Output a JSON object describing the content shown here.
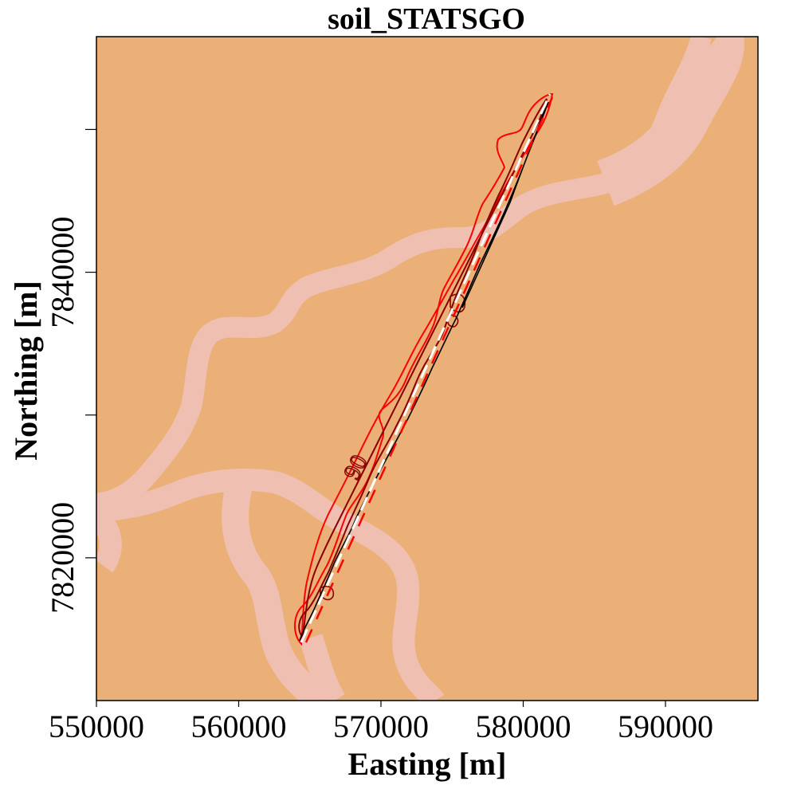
{
  "title": "soil_STATSGO",
  "x_axis": {
    "label": "Easting [m]",
    "ticks": [
      {
        "value": 550000,
        "label": "550000"
      },
      {
        "value": 560000,
        "label": "560000"
      },
      {
        "value": 570000,
        "label": "570000"
      },
      {
        "value": 580000,
        "label": "580000"
      },
      {
        "value": 590000,
        "label": "590000"
      }
    ],
    "range": [
      550000,
      596500
    ]
  },
  "y_axis": {
    "label": "Northing [m]",
    "ticks": [
      {
        "value": 7820000,
        "label": "7820000",
        "show_label": true
      },
      {
        "value": 7830000,
        "label": "7830000",
        "show_label": false
      },
      {
        "value": 7840000,
        "label": "7840000",
        "show_label": true
      },
      {
        "value": 7850000,
        "label": "7850000",
        "show_label": false
      }
    ],
    "range": [
      7810000,
      7856500
    ]
  },
  "contour_label": "90",
  "colors": {
    "background_soil": "#ebb077",
    "river_soil": "#efc0b2",
    "contour_outer": "#ff0000",
    "contour_inner": "#8b0000",
    "contour_core": "#000000",
    "centerline_white": "#ffffff",
    "centerline_red": "#ff0000"
  }
}
